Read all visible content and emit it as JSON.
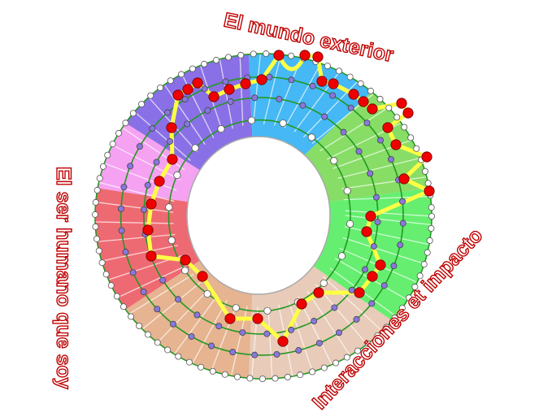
{
  "labels": {
    "top": "El mundo exterior",
    "left": "El ser humano que soy",
    "bottom_right": "Interacciones et impacto"
  },
  "colors": {
    "label_text": "#c00000",
    "sector_blue": "#45b8f5",
    "sector_green_light": "#88dd66",
    "sector_green": "#66ee70",
    "sector_peach_light": "#e8cbb8",
    "sector_peach": "#e6b490",
    "sector_red": "#ee6a72",
    "sector_pink": "#f5a2f2",
    "sector_purple": "#8a70e6",
    "ring_lines": "#229922",
    "path": "#ffff44",
    "path_node": "#ee0000",
    "inner_node": "#8877dd",
    "edge_node": "#ffffff"
  }
}
